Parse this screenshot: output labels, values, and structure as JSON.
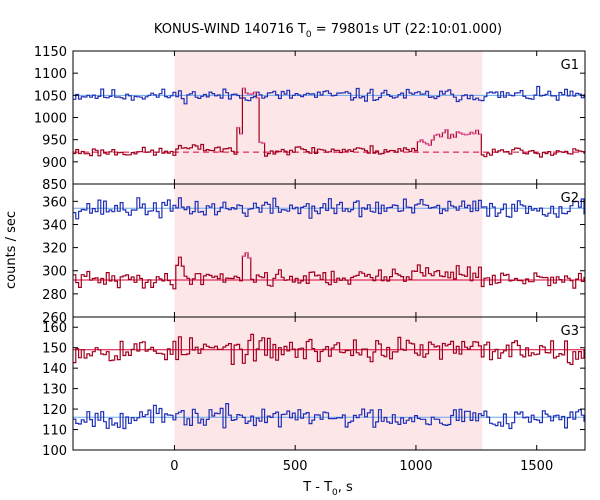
{
  "chart_data": {
    "type": "line",
    "title_main": "KONUS-WIND 140716 T",
    "title_sub": "0",
    "title_rest": " = 79801s UT (22:10:01.000)",
    "xlabel_main": "T - T",
    "xlabel_sub": "0",
    "xlabel_rest": ", s",
    "ylabel": "counts / sec",
    "xlim": [
      -420,
      1700
    ],
    "xticks": [
      0,
      500,
      1000,
      1500
    ],
    "shaded_interval": [
      0,
      1275
    ],
    "colors": {
      "upper_series": "#1f2fb5",
      "upper_fit": "#6aa8e8",
      "lower_series": "#a0001e",
      "lower_fit": "#d8003a",
      "highlight": "#f060b0",
      "shade": "#fde6e8"
    },
    "panels": [
      {
        "label": "G1",
        "ylim": [
          850,
          1150
        ],
        "yticks": [
          850,
          900,
          950,
          1000,
          1050,
          1100,
          1150
        ],
        "series": [
          {
            "role": "upper",
            "baseline": 1050,
            "noise": 7,
            "seed": 11,
            "bumps": []
          },
          {
            "role": "lower",
            "baseline": 922,
            "noise": 5,
            "seed": 23,
            "bumps": [
              {
                "start": 0,
                "end": 230,
                "level": 8
              },
              {
                "start": 255,
                "end": 280,
                "level": 50
              },
              {
                "start": 280,
                "end": 340,
                "level": 130
              },
              {
                "start": 340,
                "end": 370,
                "level": 25
              },
              {
                "start": 370,
                "end": 1000,
                "level": 4
              },
              {
                "start": 1000,
                "end": 1070,
                "level": 22
              },
              {
                "start": 1070,
                "end": 1260,
                "level": 42
              }
            ]
          }
        ],
        "fit_levels": [
          1050,
          922
        ]
      },
      {
        "label": "G2",
        "ylim": [
          260,
          375
        ],
        "yticks": [
          260,
          280,
          300,
          320,
          340,
          360
        ],
        "series": [
          {
            "role": "upper",
            "baseline": 354,
            "noise": 4,
            "seed": 37,
            "bumps": []
          },
          {
            "role": "lower",
            "baseline": 292,
            "noise": 3.5,
            "seed": 41,
            "bumps": [
              {
                "start": 0,
                "end": 40,
                "level": 12
              },
              {
                "start": 40,
                "end": 280,
                "level": 3
              },
              {
                "start": 280,
                "end": 310,
                "level": 20
              },
              {
                "start": 310,
                "end": 900,
                "level": 2
              },
              {
                "start": 900,
                "end": 1270,
                "level": 6
              }
            ]
          }
        ],
        "fit_levels": [
          354,
          292
        ]
      },
      {
        "label": "G3",
        "ylim": [
          100,
          165
        ],
        "yticks": [
          100,
          110,
          120,
          130,
          140,
          150,
          160
        ],
        "series": [
          {
            "role": "lower",
            "baseline": 149,
            "noise": 3,
            "seed": 53,
            "bumps": []
          },
          {
            "role": "upper",
            "baseline": 116,
            "noise": 2.5,
            "seed": 67,
            "bumps": []
          }
        ],
        "fit_levels": [
          149,
          116
        ]
      }
    ]
  }
}
